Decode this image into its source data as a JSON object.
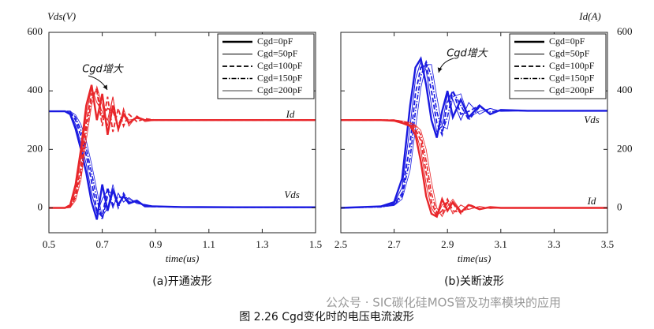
{
  "chart_data": [
    {
      "type": "line",
      "y_label": "Vds(V)",
      "y_axis_side": "left",
      "x_label": "time(us)",
      "caption": "(a)开通波形",
      "x": [
        0.5,
        0.56,
        0.58,
        0.6,
        0.62,
        0.64,
        0.66,
        0.68,
        0.7,
        0.72,
        0.74,
        0.76,
        0.78,
        0.8,
        0.83,
        0.86,
        0.9,
        1.0,
        1.2,
        1.5
      ],
      "xlim": [
        0.5,
        1.5
      ],
      "xticks": [
        0.5,
        0.7,
        0.9,
        1.1,
        1.3,
        1.5
      ],
      "ylim": [
        -85,
        600
      ],
      "yticks": [
        0,
        200,
        400,
        600
      ],
      "vds_color": "#1a1ae0",
      "id_color": "#e8262a",
      "legend_position": "upper right",
      "annotations": [
        "Cgd增大",
        "Id",
        "Vds"
      ],
      "series": [
        {
          "name": "Cgd=0pF",
          "dash": "solid",
          "width": 2.4,
          "vds": [
            330,
            330,
            320,
            270,
            200,
            120,
            20,
            -40,
            80,
            -10,
            60,
            10,
            40,
            15,
            25,
            5,
            5,
            3,
            2,
            2
          ],
          "id": [
            0,
            0,
            10,
            80,
            200,
            350,
            420,
            300,
            390,
            250,
            350,
            270,
            320,
            290,
            310,
            300,
            300,
            300,
            300,
            300
          ]
        },
        {
          "name": "Cgd=50pF",
          "dash": "solid",
          "width": 1,
          "vds": [
            330,
            330,
            325,
            285,
            220,
            150,
            50,
            -20,
            30,
            60,
            0,
            50,
            20,
            35,
            15,
            10,
            4,
            3,
            2,
            2
          ],
          "id": [
            0,
            0,
            5,
            60,
            170,
            320,
            410,
            360,
            330,
            300,
            380,
            260,
            340,
            280,
            315,
            295,
            300,
            300,
            300,
            300
          ]
        },
        {
          "name": "Cgd=100pF",
          "dash": "dashed",
          "width": 1.8,
          "vds": [
            330,
            330,
            328,
            300,
            245,
            180,
            90,
            -10,
            -30,
            70,
            10,
            40,
            30,
            20,
            25,
            5,
            4,
            3,
            2,
            2
          ],
          "id": [
            0,
            0,
            3,
            45,
            140,
            290,
            390,
            400,
            280,
            380,
            260,
            340,
            280,
            320,
            295,
            305,
            300,
            300,
            300,
            300
          ]
        },
        {
          "name": "Cgd=150pF",
          "dash": "dashdot",
          "width": 1.6,
          "vds": [
            330,
            330,
            330,
            310,
            265,
            205,
            120,
            30,
            -40,
            40,
            60,
            0,
            50,
            20,
            20,
            10,
            5,
            3,
            2,
            2
          ],
          "id": [
            0,
            0,
            2,
            35,
            115,
            260,
            370,
            410,
            310,
            340,
            330,
            280,
            330,
            290,
            310,
            300,
            300,
            300,
            300,
            300
          ]
        },
        {
          "name": "Cgd=200pF",
          "dash": "solid",
          "width": 0.8,
          "vds": [
            330,
            330,
            330,
            318,
            285,
            230,
            150,
            60,
            -30,
            0,
            80,
            10,
            40,
            30,
            15,
            12,
            5,
            3,
            2,
            2
          ],
          "id": [
            0,
            0,
            1,
            25,
            95,
            230,
            350,
            415,
            350,
            280,
            380,
            270,
            320,
            300,
            305,
            300,
            300,
            300,
            300,
            300
          ]
        }
      ]
    },
    {
      "type": "line",
      "y_label": "Id(A)",
      "y_axis_side": "right",
      "x_label": "time(us)",
      "caption": "(b)关断波形",
      "x": [
        2.5,
        2.65,
        2.7,
        2.73,
        2.76,
        2.78,
        2.8,
        2.82,
        2.84,
        2.86,
        2.88,
        2.9,
        2.92,
        2.95,
        2.98,
        3.02,
        3.06,
        3.1,
        3.2,
        3.5
      ],
      "xlim": [
        2.5,
        3.5
      ],
      "xticks": [
        2.5,
        2.7,
        2.9,
        3.1,
        3.3,
        3.5
      ],
      "ylim": [
        -85,
        600
      ],
      "yticks": [
        0,
        200,
        400,
        600
      ],
      "vds_color": "#1a1ae0",
      "id_color": "#e8262a",
      "legend_position": "upper right",
      "annotations": [
        "Cgd增大",
        "Vds",
        "Id"
      ],
      "series": [
        {
          "name": "Cgd=0pF",
          "dash": "solid",
          "width": 2.4,
          "vds": [
            0,
            5,
            20,
            100,
            350,
            480,
            510,
            420,
            300,
            240,
            330,
            400,
            310,
            370,
            310,
            350,
            320,
            335,
            332,
            332
          ],
          "id": [
            300,
            300,
            298,
            290,
            280,
            250,
            160,
            40,
            -20,
            -30,
            30,
            -10,
            20,
            -15,
            10,
            -5,
            3,
            0,
            0,
            0
          ]
        },
        {
          "name": "Cgd=50pF",
          "dash": "solid",
          "width": 1,
          "vds": [
            0,
            4,
            15,
            70,
            280,
            440,
            500,
            470,
            350,
            260,
            280,
            390,
            370,
            300,
            360,
            320,
            340,
            330,
            332,
            332
          ],
          "id": [
            300,
            300,
            299,
            293,
            284,
            262,
            200,
            80,
            0,
            -30,
            10,
            20,
            -20,
            10,
            -5,
            5,
            -2,
            0,
            0,
            0
          ]
        },
        {
          "name": "Cgd=100pF",
          "dash": "dashed",
          "width": 1.8,
          "vds": [
            0,
            4,
            12,
            50,
            220,
            390,
            480,
            490,
            400,
            290,
            250,
            360,
            400,
            320,
            330,
            350,
            320,
            335,
            332,
            332
          ],
          "id": [
            300,
            300,
            300,
            295,
            287,
            270,
            230,
            120,
            20,
            -25,
            -10,
            30,
            -10,
            -15,
            12,
            -3,
            2,
            0,
            0,
            0
          ]
        },
        {
          "name": "Cgd=150pF",
          "dash": "dashdot",
          "width": 1.6,
          "vds": [
            0,
            3,
            10,
            40,
            170,
            330,
            450,
            500,
            450,
            330,
            260,
            310,
            400,
            350,
            300,
            345,
            328,
            333,
            332,
            332
          ],
          "id": [
            300,
            300,
            300,
            296,
            290,
            278,
            250,
            160,
            50,
            -15,
            -25,
            20,
            15,
            -20,
            8,
            -4,
            2,
            0,
            0,
            0
          ]
        },
        {
          "name": "Cgd=200pF",
          "dash": "solid",
          "width": 0.8,
          "vds": [
            0,
            3,
            8,
            30,
            130,
            270,
            410,
            490,
            490,
            380,
            280,
            270,
            380,
            390,
            310,
            330,
            340,
            330,
            332,
            332
          ],
          "id": [
            300,
            300,
            300,
            297,
            292,
            283,
            265,
            200,
            90,
            0,
            -30,
            5,
            30,
            -10,
            -5,
            5,
            -2,
            0,
            0,
            0
          ]
        }
      ]
    }
  ],
  "caption": "图 2.26 Cgd变化时的电压电流波形",
  "watermark": "公众号 · SIC碳化硅MOS管及功率模块的应用"
}
